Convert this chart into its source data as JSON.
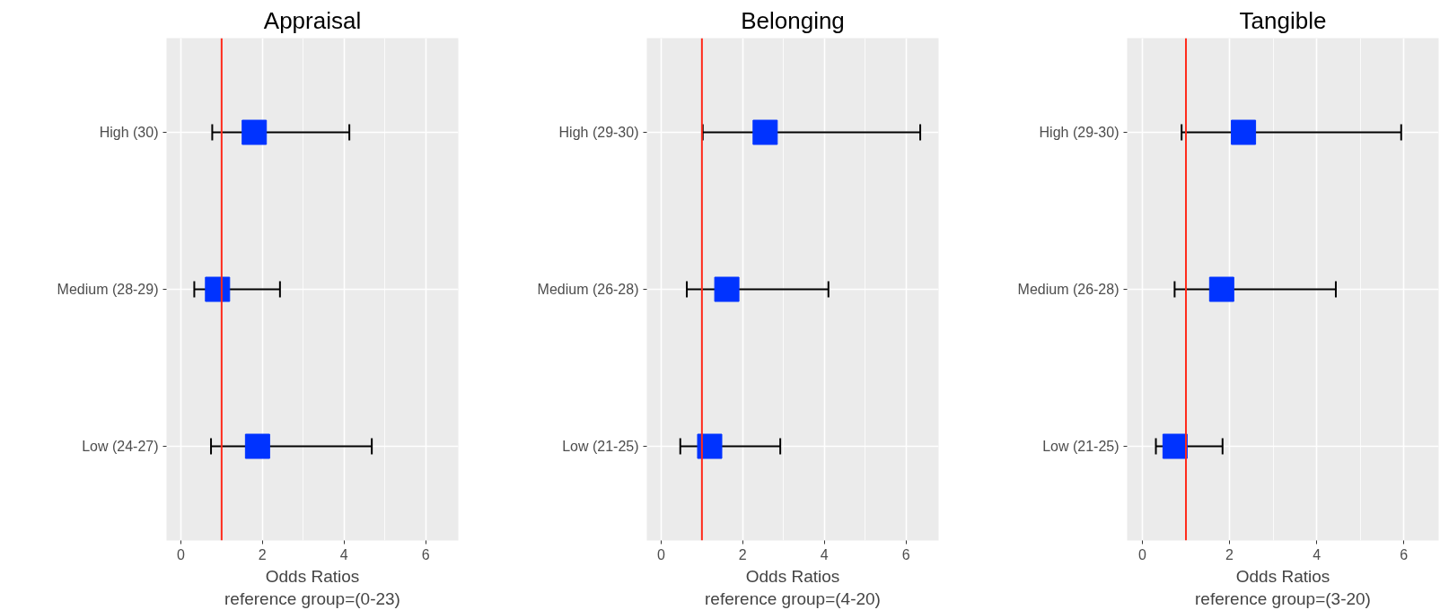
{
  "chart_data": [
    {
      "type": "scatter",
      "orientation": "horizontal",
      "title": "Appraisal",
      "xlabel": "Odds Ratios\nreference group=(0-23)",
      "categories": [
        "High (30)",
        "Medium (28-29)",
        "Low (24-27)"
      ],
      "values": [
        1.8,
        0.9,
        1.88
      ],
      "errors": [
        [
          0.77,
          4.13
        ],
        [
          0.33,
          2.43
        ],
        [
          0.74,
          4.68
        ]
      ],
      "color": "#0033ff",
      "marker": "square",
      "xlim": [
        -0.35,
        6.8
      ],
      "xticks": [
        0,
        2,
        4,
        6
      ],
      "grid": true,
      "ref_lines": [
        {
          "axis": "x",
          "value": 1,
          "color": "#ff2a1a"
        }
      ]
    },
    {
      "type": "scatter",
      "orientation": "horizontal",
      "title": "Belonging",
      "xlabel": "Odds Ratios\nreference group=(4-20)",
      "categories": [
        "High (29-30)",
        "Medium (26-28)",
        "Low (21-25)"
      ],
      "values": [
        2.55,
        1.61,
        1.19
      ],
      "errors": [
        [
          1.02,
          6.35
        ],
        [
          0.63,
          4.1
        ],
        [
          0.47,
          2.92
        ]
      ],
      "color": "#0033ff",
      "marker": "square",
      "xlim": [
        -0.35,
        6.8
      ],
      "xticks": [
        0,
        2,
        4,
        6
      ],
      "grid": true,
      "ref_lines": [
        {
          "axis": "x",
          "value": 1,
          "color": "#ff2a1a"
        }
      ]
    },
    {
      "type": "scatter",
      "orientation": "horizontal",
      "title": "Tangible",
      "xlabel": "Odds Ratios\nreference group=(3-20)",
      "categories": [
        "High (29-30)",
        "Medium (26-28)",
        "Low (21-25)"
      ],
      "values": [
        2.32,
        1.82,
        0.75
      ],
      "errors": [
        [
          0.9,
          5.94
        ],
        [
          0.74,
          4.44
        ],
        [
          0.31,
          1.84
        ]
      ],
      "color": "#0033ff",
      "marker": "square",
      "xlim": [
        -0.35,
        6.8
      ],
      "xticks": [
        0,
        2,
        4,
        6
      ],
      "grid": true,
      "ref_lines": [
        {
          "axis": "x",
          "value": 1,
          "color": "#ff2a1a"
        }
      ]
    }
  ]
}
